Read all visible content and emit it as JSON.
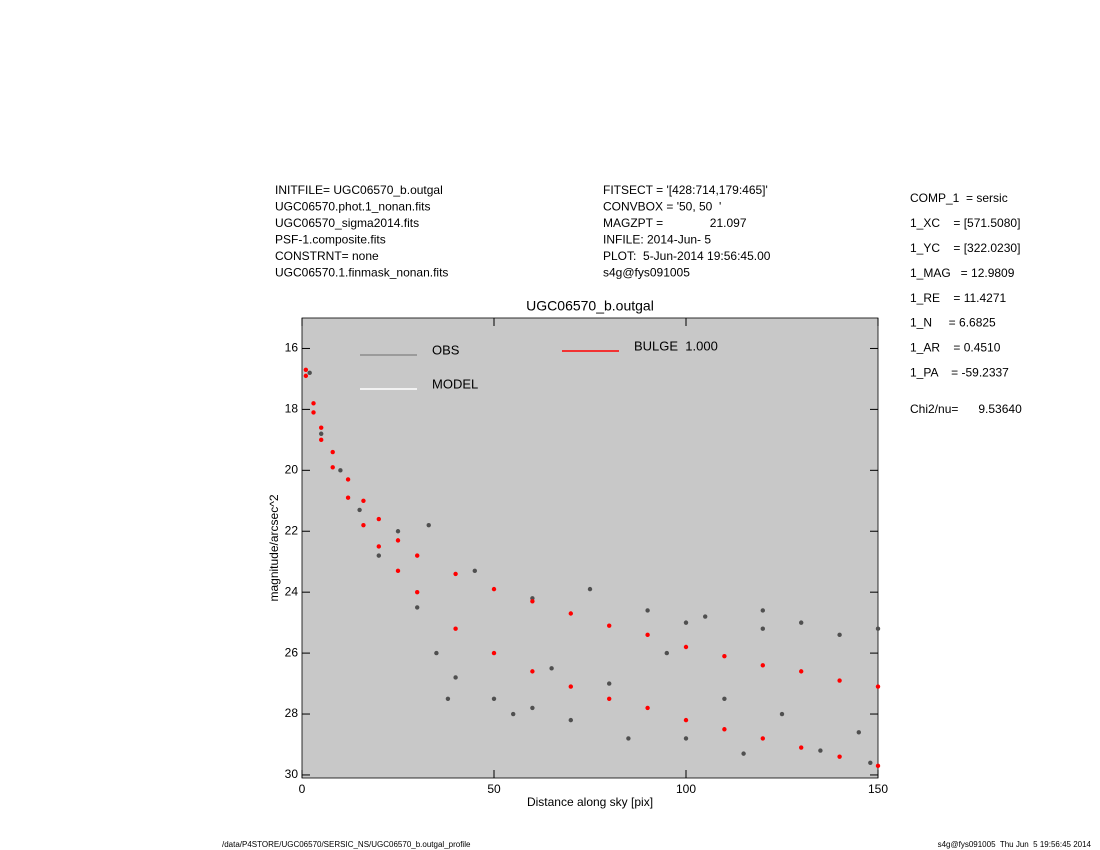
{
  "header": {
    "left": [
      "INITFILE= UGC06570_b.outgal",
      "UGC06570.phot.1_nonan.fits",
      "UGC06570_sigma2014.fits",
      "PSF-1.composite.fits",
      "CONSTRNT= none",
      "UGC06570.1.finmask_nonan.fits"
    ],
    "middle": [
      "FITSECT = '[428:714,179:465]'",
      "CONVBOX = '50, 50  '",
      "MAGZPT =              21.097",
      "INFILE: 2014-Jun- 5",
      "PLOT:  5-Jun-2014 19:56:45.00",
      "s4g@fys091005"
    ],
    "right": [
      "COMP_1  = sersic",
      "1_XC    = [571.5080]",
      "1_YC    = [322.0230]",
      "1_MAG   = 12.9809",
      "1_RE    = 11.4271",
      "1_N     = 6.6825",
      "1_AR    = 0.4510",
      "1_PA    = -59.2337"
    ],
    "chi2": "Chi2/nu=      9.53640"
  },
  "footer": {
    "left": "/data/P4STORE/UGC06570/SERSIC_NS/UGC06570_b.outgal_profile",
    "right": "s4g@fys091005  Thu Jun  5 19:56:45 2014"
  },
  "chart_data": {
    "type": "scatter",
    "title": "UGC06570_b.outgal",
    "x_label": "Distance along sky [pix]",
    "y_label": "magnitude/arcsec^2",
    "xlim": [
      0,
      150
    ],
    "xticks": [
      0,
      50,
      100,
      150
    ],
    "ylim": [
      30.1,
      15
    ],
    "yticks": [
      16,
      18,
      20,
      22,
      24,
      26,
      28,
      30
    ],
    "background": "#c8c8c8",
    "series": [
      {
        "name": "OBS",
        "color": "#8c8c8c",
        "marker_color": "#505050",
        "x": [
          2,
          5,
          10,
          15,
          20,
          25,
          30,
          35,
          40,
          45,
          50,
          55,
          60,
          65,
          70,
          75,
          80,
          85,
          90,
          95,
          100,
          105,
          110,
          115,
          120,
          125,
          130,
          135,
          140,
          145,
          150,
          148,
          33,
          38,
          60,
          120,
          100
        ],
        "values": [
          16.8,
          18.8,
          20.0,
          21.3,
          22.8,
          22.0,
          24.5,
          26.0,
          26.8,
          23.3,
          27.5,
          28.0,
          24.2,
          26.5,
          28.2,
          23.9,
          27.0,
          28.8,
          24.6,
          26.0,
          28.8,
          24.8,
          27.5,
          29.3,
          25.2,
          28.0,
          25.0,
          29.2,
          25.4,
          28.6,
          25.2,
          29.6,
          21.8,
          27.5,
          27.8,
          24.6,
          25.0
        ]
      },
      {
        "name": "MODEL",
        "color": "#ffffff",
        "x": [],
        "values": []
      },
      {
        "name": "BULGE  1.000",
        "color": "#ff0000",
        "x": [
          1,
          3,
          5,
          8,
          12,
          16,
          20,
          25,
          30,
          40,
          50,
          60,
          70,
          80,
          90,
          100,
          110,
          120,
          130,
          140,
          150,
          1,
          3,
          5,
          8,
          12,
          16,
          20,
          25,
          30,
          40,
          50,
          60,
          70,
          80,
          90,
          100,
          110,
          120,
          130,
          140,
          150
        ],
        "values": [
          16.7,
          17.8,
          18.6,
          19.4,
          20.3,
          21.0,
          21.6,
          22.3,
          22.8,
          23.4,
          23.9,
          24.3,
          24.7,
          25.1,
          25.4,
          25.8,
          26.1,
          26.4,
          26.6,
          26.9,
          27.1,
          16.9,
          18.1,
          19.0,
          19.9,
          20.9,
          21.8,
          22.5,
          23.3,
          24.0,
          25.2,
          26.0,
          26.6,
          27.1,
          27.5,
          27.8,
          28.2,
          28.5,
          28.8,
          29.1,
          29.4,
          29.7
        ]
      }
    ]
  }
}
